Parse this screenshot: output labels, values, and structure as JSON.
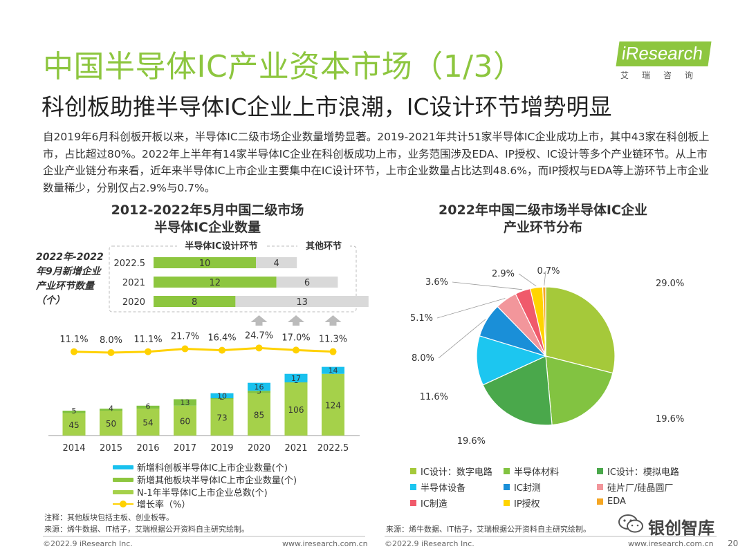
{
  "header": {
    "title": "中国半导体IC产业资本市场（1/3）",
    "subtitle": "科创板助推半导体IC企业上市浪潮，IC设计环节增势明显",
    "logo_text": "iResearch",
    "logo_sub": "艾瑞咨询"
  },
  "paragraph": "自2019年6月科创板开板以来，半导体IC二级市场企业数量增势显著。2019-2021年共计51家半导体IC企业成功上市，其中43家在科创板上市，占比超过80%。2022年上半年有14家半导体IC企业在科创板成功上市，业务范围涉及EDA、IP授权、IC设计等多个产业链环节。从上市企业产业链分布来看，近年来半导体IC上市企业主要集中在IC设计环节，上市企业数量占比达到48.6%，而IP授权与EDA等上游环节上市企业数量稀少，分别仅占2.9%与0.7%。",
  "left_chart": {
    "title_line1": "2012-2022年5月中国二级市场",
    "title_line2": "半导体IC企业数量",
    "side_note": "2022年-2022年9月新增企业产业环节数量（个）",
    "inset_header_ic": "半导体IC设计环节",
    "inset_header_other": "其他环节",
    "legend": {
      "star": "新增科创板半导体IC上市企业数量(个)",
      "other": "新增其他板块半导体IC上市企业数量(个)",
      "base": "N-1年半导体IC上市企业总数(个)",
      "growth": "增长率（%）"
    },
    "note": "注释：其他版块包括主板、创业板等。",
    "source": "来源：烯牛数据、IT桔子，艾瑞根据公开资料自主研究绘制。"
  },
  "right_chart": {
    "title_line1": "2022年中国二级市场半导体IC企业",
    "title_line2": "产业环节分布",
    "source": "来源：烯牛数据、IT桔子，艾瑞根据公开资料自主研究绘制。"
  },
  "footer": {
    "left_copyright": "©2022.9 iResearch Inc.",
    "left_url": "www.iresearch.com.cn",
    "right_copyright": "©2022.9 iResearch Inc.",
    "right_url": "www.iresearch.com.cn",
    "watermark": "银创智库",
    "page_number": "20"
  },
  "colors": {
    "accent": "#8dc63f",
    "green": "#8dc63f",
    "cyan": "#19c1ee",
    "yellow": "#ffd100",
    "gray": "#d9d9d9"
  },
  "chart_data": [
    {
      "type": "bar",
      "stacked": true,
      "categories": [
        "2014",
        "2015",
        "2016",
        "2017",
        "2019",
        "2020",
        "2021",
        "2022.5"
      ],
      "series": [
        {
          "name": "N-1年半导体IC上市企业总数(个)",
          "values": [
            45,
            50,
            54,
            60,
            73,
            85,
            106,
            124
          ]
        },
        {
          "name": "新增其他板块半导体IC上市企业数量(个)",
          "values": [
            5,
            4,
            6,
            13,
            2,
            5,
            1,
            0
          ]
        },
        {
          "name": "新增科创板半导体IC上市企业数量(个)",
          "values": [
            0,
            0,
            0,
            0,
            10,
            16,
            17,
            14
          ]
        }
      ],
      "line_series": {
        "name": "增长率（%）",
        "values": [
          11.1,
          8.0,
          11.1,
          21.7,
          16.4,
          24.7,
          17.0,
          11.3
        ],
        "labels": [
          "11.1%",
          "8.0%",
          "11.1%",
          "21.7%",
          "16.4%",
          "24.7%",
          "17.0%",
          "11.3%"
        ]
      },
      "title": "2012-2022年5月中国二级市场 半导体IC企业数量"
    },
    {
      "type": "bar",
      "orientation": "horizontal",
      "stacked": true,
      "categories": [
        "2022.5",
        "2021",
        "2020"
      ],
      "series": [
        {
          "name": "半导体IC设计环节",
          "values": [
            10,
            12,
            8
          ]
        },
        {
          "name": "其他环节",
          "values": [
            4,
            6,
            13
          ]
        }
      ],
      "title": "2022年-2022年9月新增企业产业环节数量（个）"
    },
    {
      "type": "pie",
      "title": "2022年中国二级市场半导体IC企业 产业环节分布",
      "slices": [
        {
          "label": "IC设计：数字电路",
          "value": 29.0,
          "value_label": "29.0%",
          "color": "#a5c93a"
        },
        {
          "label": "半导体材料",
          "value": 19.6,
          "value_label": "19.6%",
          "color": "#82c341"
        },
        {
          "label": "IC设计：模拟电路",
          "value": 19.6,
          "value_label": "19.6%",
          "color": "#4aa84b"
        },
        {
          "label": "半导体设备",
          "value": 11.6,
          "value_label": "11.6%",
          "color": "#1cc6f0"
        },
        {
          "label": "IC封测",
          "value": 8.0,
          "value_label": "8.0%",
          "color": "#1a8fd8"
        },
        {
          "label": "硅片厂/硅晶圆厂",
          "value": 5.1,
          "value_label": "5.1%",
          "color": "#f2969b"
        },
        {
          "label": "IC制造",
          "value": 3.6,
          "value_label": "3.6%",
          "color": "#f05a6b"
        },
        {
          "label": "IP授权",
          "value": 2.9,
          "value_label": "2.9%",
          "color": "#ffd400"
        },
        {
          "label": "EDA",
          "value": 0.7,
          "value_label": "0.7%",
          "color": "#f5a623"
        }
      ]
    }
  ]
}
